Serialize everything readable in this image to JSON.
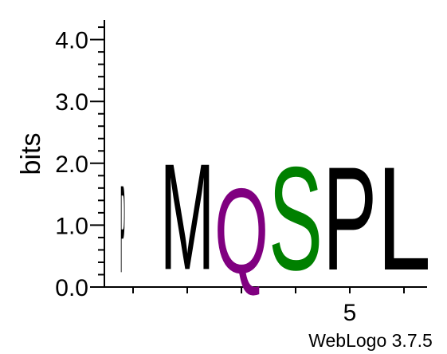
{
  "chart_data": {
    "type": "sequence-logo",
    "ylabel": "bits",
    "ylim": [
      0,
      4.32
    ],
    "yticks": [
      "0.0",
      "1.0",
      "2.0",
      "3.0",
      "4.0"
    ],
    "xtick_labels": [
      {
        "position": 5,
        "label": "5"
      }
    ],
    "positions": [
      {
        "position": 1,
        "letter": "P",
        "bits": 1.65,
        "color": "#000000"
      },
      {
        "position": 2,
        "letter": "M",
        "bits": 2.0,
        "color": "#000000"
      },
      {
        "position": 3,
        "letter": "Q",
        "bits": 1.6,
        "color": "#800080"
      },
      {
        "position": 4,
        "letter": "S",
        "bits": 1.95,
        "color": "#008000"
      },
      {
        "position": 5,
        "letter": "P",
        "bits": 1.95,
        "color": "#000000"
      },
      {
        "position": 6,
        "letter": "L",
        "bits": 1.95,
        "color": "#000000"
      }
    ],
    "footer": "WebLogo 3.7.5"
  }
}
